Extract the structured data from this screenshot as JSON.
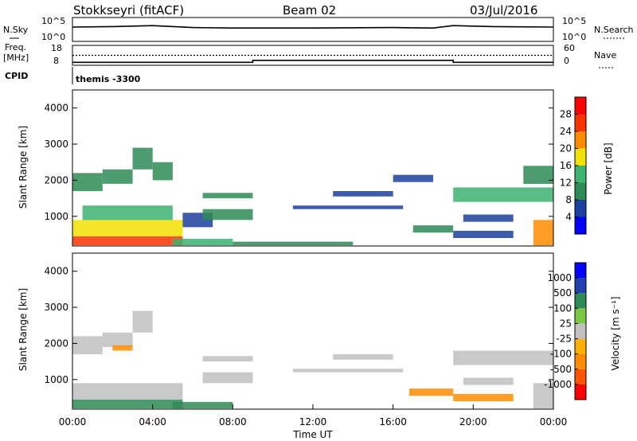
{
  "header": {
    "title": "Stokkseyri (fitACF)",
    "beam": "Beam 02",
    "date": "03/Jul/2016"
  },
  "nsky_panel": {
    "left_label": "N.Sky",
    "left_ticks": [
      "10^5",
      "10^0"
    ],
    "right_label": "N.Search",
    "right_ticks": [
      "10^5",
      "10^0"
    ]
  },
  "freq_panel": {
    "left_label_1": "Freq.",
    "left_label_2": "[MHz]",
    "left_ticks": [
      "18",
      "8"
    ],
    "right_label": "Nave",
    "right_ticks": [
      "60",
      "0"
    ],
    "cpid_label": "CPID",
    "cpid_text": "themis -3300"
  },
  "colors": {
    "power": [
      "#0000ff",
      "#1d3f9e",
      "#2e8b57",
      "#3cb371",
      "#f2e200",
      "#ff8c00",
      "#ff3300",
      "#ff0000"
    ],
    "velocity": [
      "#ff0000",
      "#ff5500",
      "#ff8c00",
      "#ffb000",
      "#c0c0c0",
      "#7ac943",
      "#2e8b57",
      "#2040b0",
      "#0000ff"
    ],
    "ground_scatter": "#c0c0c0"
  },
  "chart_data": [
    {
      "type": "heatmap",
      "panel": "power",
      "ylabel": "Slant Range [km]",
      "yticks": [
        "1000",
        "2000",
        "3000",
        "4000"
      ],
      "ylim": [
        180,
        4500
      ],
      "xlim": [
        0,
        24
      ],
      "colorbar_label": "Power [dB]",
      "colorbar_ticks": [
        "4",
        "8",
        "12",
        "16",
        "20",
        "24",
        "28"
      ],
      "colorbar_range": [
        0,
        32
      ],
      "regions": [
        {
          "t0": 0.0,
          "t1": 5.5,
          "r0": 200,
          "r1": 450,
          "val": 27
        },
        {
          "t0": 0.0,
          "t1": 5.5,
          "r0": 450,
          "r1": 900,
          "val": 18
        },
        {
          "t0": 0.5,
          "t1": 5.0,
          "r0": 900,
          "r1": 1300,
          "val": 12
        },
        {
          "t0": 0.0,
          "t1": 1.5,
          "r0": 1700,
          "r1": 2200,
          "val": 10
        },
        {
          "t0": 1.5,
          "t1": 3.0,
          "r0": 1900,
          "r1": 2300,
          "val": 9
        },
        {
          "t0": 3.0,
          "t1": 4.0,
          "r0": 2300,
          "r1": 2900,
          "val": 10
        },
        {
          "t0": 4.0,
          "t1": 5.0,
          "r0": 2000,
          "r1": 2500,
          "val": 8
        },
        {
          "t0": 5.0,
          "t1": 8.0,
          "r0": 200,
          "r1": 380,
          "val": 12
        },
        {
          "t0": 8.0,
          "t1": 14.0,
          "r0": 200,
          "r1": 300,
          "val": 8
        },
        {
          "t0": 5.5,
          "t1": 7.0,
          "r0": 700,
          "r1": 1100,
          "val": 7
        },
        {
          "t0": 6.5,
          "t1": 9.0,
          "r0": 900,
          "r1": 1200,
          "val": 8
        },
        {
          "t0": 6.5,
          "t1": 9.0,
          "r0": 1500,
          "r1": 1650,
          "val": 9
        },
        {
          "t0": 13.0,
          "t1": 16.0,
          "r0": 1550,
          "r1": 1700,
          "val": 7
        },
        {
          "t0": 11.0,
          "t1": 16.5,
          "r0": 1200,
          "r1": 1300,
          "val": 6
        },
        {
          "t0": 16.0,
          "t1": 18.0,
          "r0": 1950,
          "r1": 2150,
          "val": 6
        },
        {
          "t0": 17.0,
          "t1": 19.0,
          "r0": 550,
          "r1": 750,
          "val": 10
        },
        {
          "t0": 19.0,
          "t1": 22.0,
          "r0": 400,
          "r1": 600,
          "val": 7
        },
        {
          "t0": 19.0,
          "t1": 24.0,
          "r0": 1400,
          "r1": 1800,
          "val": 14
        },
        {
          "t0": 19.5,
          "t1": 22.0,
          "r0": 850,
          "r1": 1050,
          "val": 7
        },
        {
          "t0": 22.5,
          "t1": 24.0,
          "r0": 1900,
          "r1": 2400,
          "val": 8
        },
        {
          "t0": 23.0,
          "t1": 24.0,
          "r0": 200,
          "r1": 900,
          "val": 22
        }
      ]
    },
    {
      "type": "heatmap",
      "panel": "velocity",
      "ylabel": "Slant Range [km]",
      "yticks": [
        "1000",
        "2000",
        "3000",
        "4000"
      ],
      "ylim": [
        180,
        4500
      ],
      "xlim": [
        0,
        24
      ],
      "xlabel": "Time UT",
      "xticks": [
        "00:00",
        "04:00",
        "08:00",
        "12:00",
        "16:00",
        "20:00",
        "00:00"
      ],
      "colorbar_label": "Velocity [m s⁻¹]",
      "colorbar_ticks": [
        "-1000",
        "-500",
        "-100",
        "-25",
        "25",
        "100",
        "500",
        "1000"
      ],
      "regions": [
        {
          "t0": 0.0,
          "t1": 5.5,
          "r0": 200,
          "r1": 450,
          "val": 150
        },
        {
          "t0": 0.0,
          "t1": 5.5,
          "r0": 450,
          "r1": 900,
          "val": 0
        },
        {
          "t0": 0.0,
          "t1": 1.5,
          "r0": 1700,
          "r1": 2200,
          "val": 0
        },
        {
          "t0": 1.5,
          "t1": 3.0,
          "r0": 1900,
          "r1": 2300,
          "val": 0
        },
        {
          "t0": 3.0,
          "t1": 4.0,
          "r0": 2300,
          "r1": 2900,
          "val": 0
        },
        {
          "t0": 2.0,
          "t1": 3.0,
          "r0": 1800,
          "r1": 1950,
          "val": -300
        },
        {
          "t0": 5.0,
          "t1": 8.0,
          "r0": 200,
          "r1": 380,
          "val": 150
        },
        {
          "t0": 6.5,
          "t1": 9.0,
          "r0": 900,
          "r1": 1200,
          "val": 0
        },
        {
          "t0": 6.5,
          "t1": 9.0,
          "r0": 1500,
          "r1": 1650,
          "val": 0
        },
        {
          "t0": 13.0,
          "t1": 16.0,
          "r0": 1550,
          "r1": 1700,
          "val": 0
        },
        {
          "t0": 11.0,
          "t1": 16.5,
          "r0": 1200,
          "r1": 1300,
          "val": 0
        },
        {
          "t0": 16.8,
          "t1": 19.0,
          "r0": 550,
          "r1": 750,
          "val": -300
        },
        {
          "t0": 19.0,
          "t1": 22.0,
          "r0": 400,
          "r1": 600,
          "val": -300
        },
        {
          "t0": 19.0,
          "t1": 24.0,
          "r0": 1400,
          "r1": 1800,
          "val": 0
        },
        {
          "t0": 19.5,
          "t1": 22.0,
          "r0": 850,
          "r1": 1050,
          "val": 0
        },
        {
          "t0": 23.0,
          "t1": 24.0,
          "r0": 200,
          "r1": 900,
          "val": 0
        }
      ]
    },
    {
      "type": "line",
      "panel": "frequency",
      "series": [
        {
          "points": [
            [
              0,
              9.5
            ],
            [
              9.0,
              9.5
            ],
            [
              9.0,
              10.5
            ],
            [
              19.0,
              10.5
            ],
            [
              19.0,
              9.5
            ],
            [
              24,
              9.5
            ]
          ]
        },
        {
          "points": [
            [
              0,
              13.0
            ],
            [
              24,
              13.0
            ]
          ]
        }
      ]
    },
    {
      "type": "line",
      "panel": "noise",
      "series": [
        {
          "points": [
            [
              0,
              3.0
            ],
            [
              2,
              3.1
            ],
            [
              4,
              3.3
            ],
            [
              6,
              2.9
            ],
            [
              8,
              2.8
            ],
            [
              12,
              2.8
            ],
            [
              16,
              2.9
            ],
            [
              18,
              2.8
            ],
            [
              19,
              3.3
            ],
            [
              21,
              3.1
            ],
            [
              24,
              3.0
            ]
          ]
        }
      ]
    }
  ]
}
